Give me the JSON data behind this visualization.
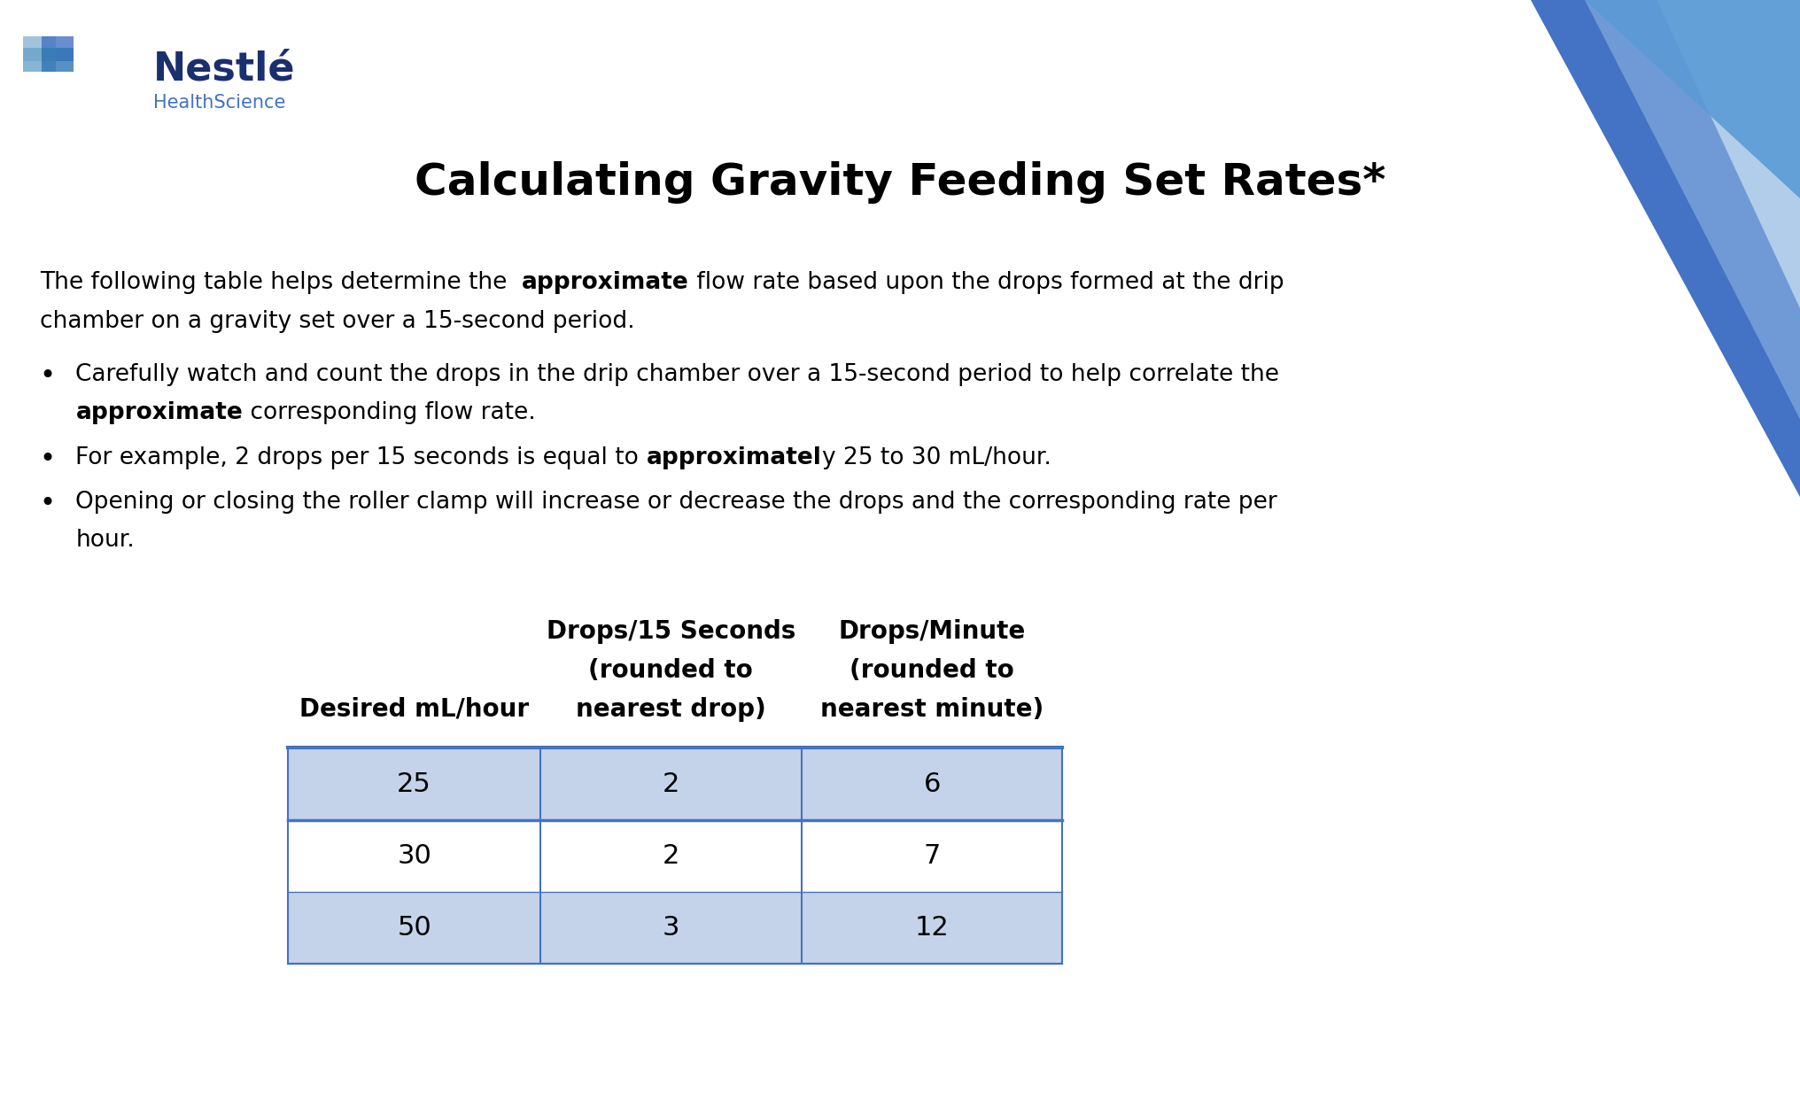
{
  "title": "Calculating Gravity Feeding Set Rates*",
  "bg_color": "#ffffff",
  "body_text_color": "#000000",
  "table_row_odd_bg": "#c5d3ea",
  "table_row_even_bg": "#ffffff",
  "table_border_color": "#4472c4",
  "swoosh_dark": "#2e74b5",
  "swoosh_mid": "#5b9bd5",
  "swoosh_light": "#bdd7ee",
  "nestle_name_color": "#1a2f6e",
  "nestle_sub_color": "#4472c4",
  "table_data": [
    [
      "25",
      "2",
      "6"
    ],
    [
      "30",
      "2",
      "7"
    ],
    [
      "50",
      "3",
      "12"
    ]
  ]
}
